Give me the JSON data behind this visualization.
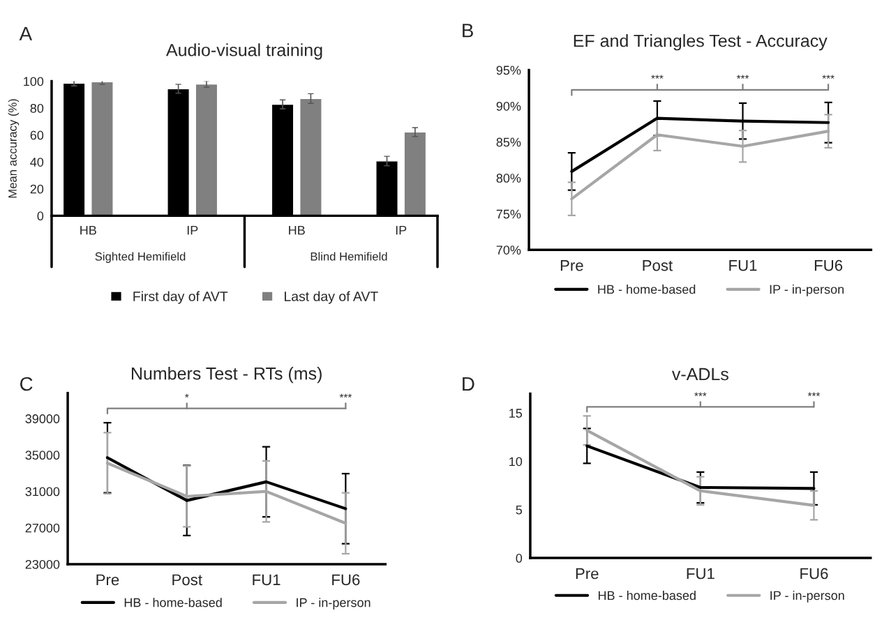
{
  "chart_data": [
    {
      "type": "bar",
      "title": "Audio-visual training",
      "ylabel": "Mean accuracy (%)",
      "categories": [
        "HB",
        "IP",
        "HB",
        "IP"
      ],
      "annotations": [
        "A",
        "Sighted Hemifield",
        "Blind Hemifield"
      ],
      "series": [
        {
          "name": "First day of AVT",
          "color": "#000000",
          "values": [
            98.5,
            94.4,
            82.8,
            40.7
          ],
          "errors": [
            2,
            3.3,
            3.3,
            3.5
          ]
        },
        {
          "name": "Last day of AVT",
          "color": "#808080",
          "values": [
            99.6,
            97.9,
            87.1,
            62.2
          ],
          "errors": [
            2,
            2.3,
            3.6,
            3.3
          ]
        }
      ],
      "ylim": [
        0,
        100
      ],
      "yticks": [
        0,
        20,
        40,
        60,
        80,
        100
      ],
      "grid": false,
      "legend": "bottom"
    },
    {
      "type": "line",
      "title": "EF and Triangles Test - Accuracy",
      "categories": [
        "Pre",
        "Post",
        "FU1",
        "FU6"
      ],
      "annotations": [
        "B",
        "***",
        "***",
        "***"
      ],
      "series": [
        {
          "name": "HB - home-based",
          "color": "#000000",
          "values": [
            80.9,
            88.3,
            87.9,
            87.7
          ],
          "errors": [
            2.6,
            2.4,
            2.5,
            2.8
          ]
        },
        {
          "name": "IP - in-person",
          "color": "#a6a6a6",
          "values": [
            77.1,
            86.0,
            84.4,
            86.5
          ],
          "errors": [
            2.3,
            2.2,
            2.2,
            2.3
          ]
        }
      ],
      "ylim": [
        70,
        95
      ],
      "yticks": [
        {
          "value": 70,
          "label": "70%"
        },
        {
          "value": 75,
          "label": "75%"
        },
        {
          "value": 80,
          "label": "80%"
        },
        {
          "value": 85,
          "label": "85%"
        },
        {
          "value": 90,
          "label": "90%"
        },
        {
          "value": 95,
          "label": "95%"
        }
      ],
      "grid": false,
      "legend": "bottom",
      "marker": "none",
      "line_style": "solid"
    },
    {
      "type": "line",
      "title": "Numbers Test - RTs (ms)",
      "categories": [
        "Pre",
        "Post",
        "FU1",
        "FU6"
      ],
      "annotations": [
        "C",
        "*",
        "***"
      ],
      "series": [
        {
          "name": "HB - home-based",
          "color": "#000000",
          "values": [
            34700,
            30000,
            32050,
            29100
          ],
          "errors": [
            3850,
            3850,
            3850,
            3850
          ]
        },
        {
          "name": "IP - in-person",
          "color": "#a6a6a6",
          "values": [
            34100,
            30450,
            31000,
            27500
          ],
          "errors": [
            3350,
            3350,
            3350,
            3350
          ]
        }
      ],
      "ylim": [
        23000,
        41800
      ],
      "yticks": [
        23000,
        27000,
        31000,
        35000,
        39000
      ],
      "grid": false,
      "legend": "bottom",
      "marker": "none",
      "line_style": "solid"
    },
    {
      "type": "line",
      "title": "v-ADLs",
      "categories": [
        "Pre",
        "FU1",
        "FU6"
      ],
      "annotations": [
        "D",
        "***",
        "***"
      ],
      "series": [
        {
          "name": "HB - home-based",
          "color": "#000000",
          "values": [
            11.6,
            7.3,
            7.2
          ],
          "errors": [
            1.8,
            1.6,
            1.7
          ]
        },
        {
          "name": "IP - in-person",
          "color": "#a6a6a6",
          "values": [
            13.2,
            6.95,
            5.45
          ],
          "errors": [
            1.5,
            1.45,
            1.5
          ]
        }
      ],
      "ylim": [
        0,
        17
      ],
      "yticks": [
        0,
        5,
        10,
        15
      ],
      "grid": false,
      "legend": "bottom",
      "marker": "none",
      "line_style": "solid"
    }
  ]
}
